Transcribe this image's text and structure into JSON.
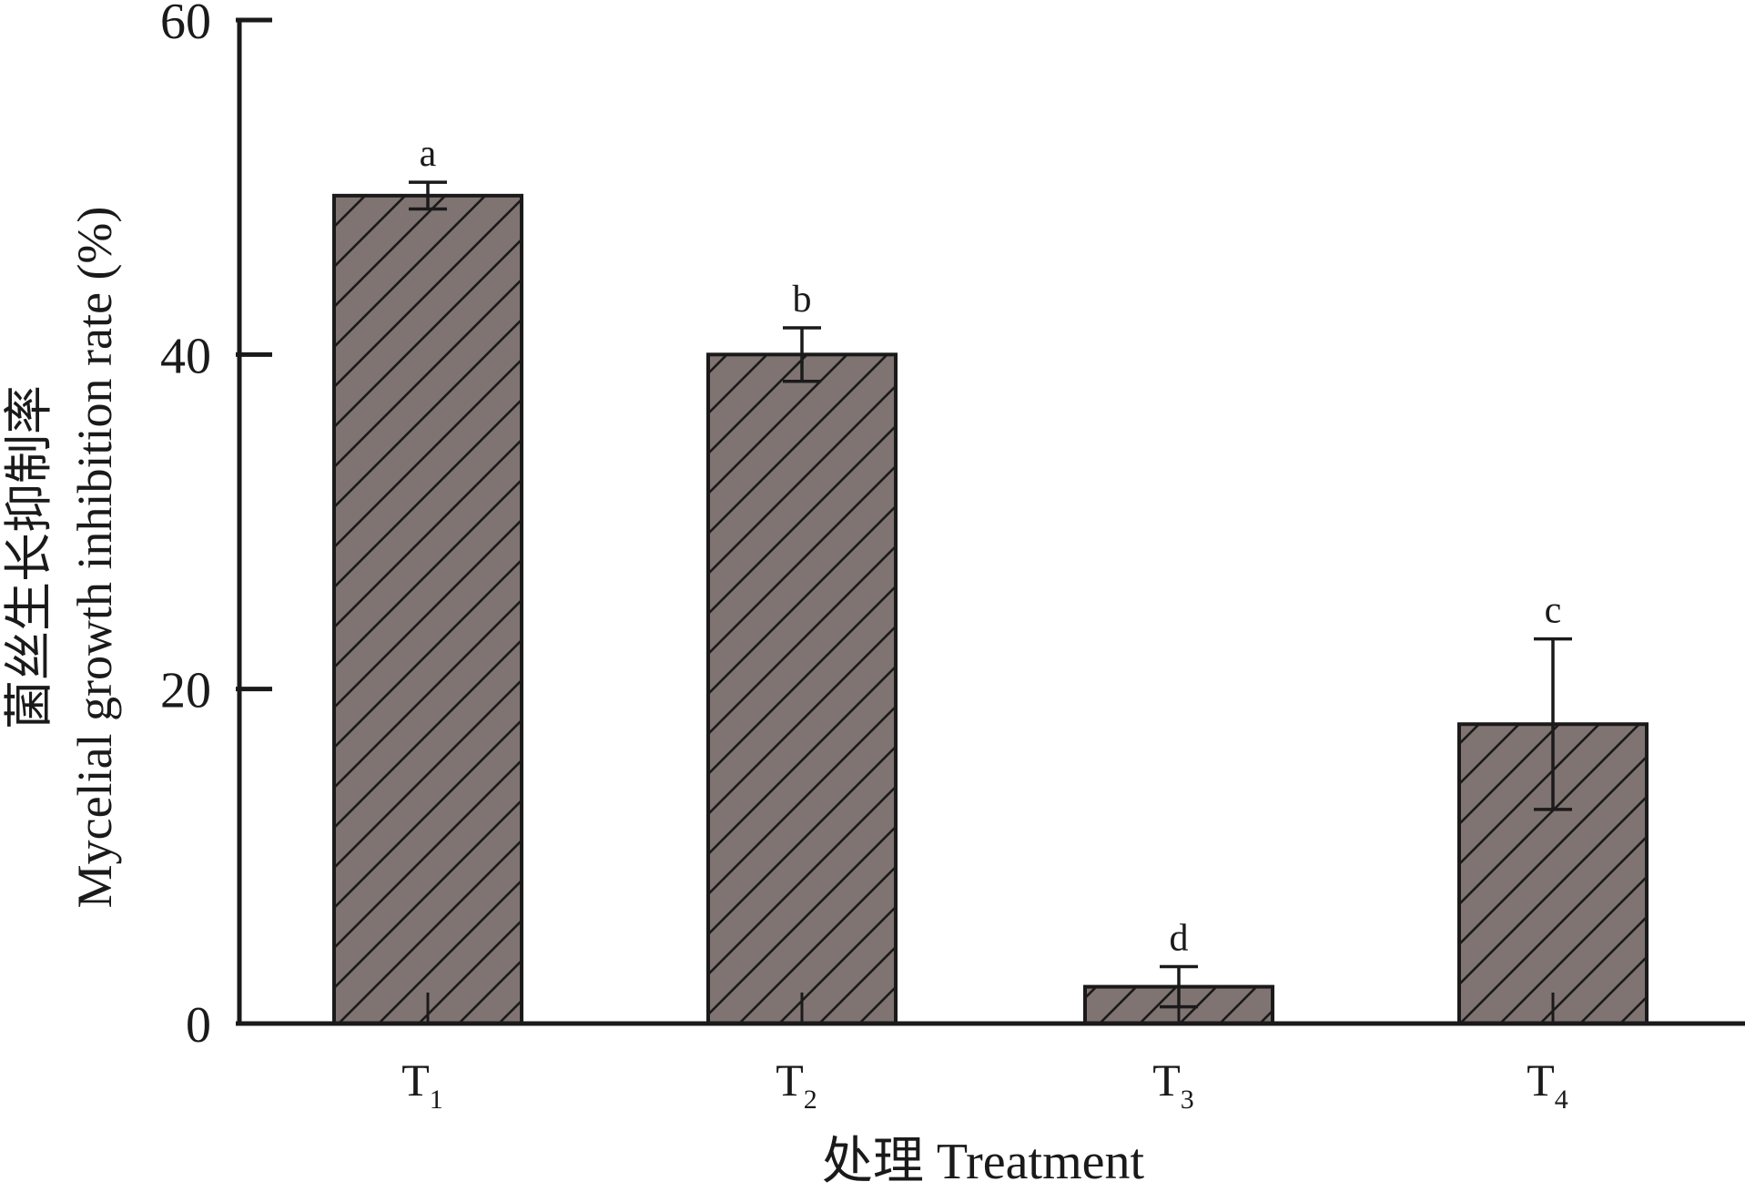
{
  "chart_data": {
    "type": "bar",
    "title": "",
    "xlabel": "处理 Treatment",
    "ylabel_cn": "菌丝生长抑制率",
    "ylabel": "Mycelial growth inhibition rate (%)",
    "ylim": [
      0,
      60
    ],
    "yticks": [
      0,
      20,
      40,
      60
    ],
    "grid": false,
    "legend": "none",
    "categories": [
      {
        "base": "T",
        "sub": "1"
      },
      {
        "base": "T",
        "sub": "2"
      },
      {
        "base": "T",
        "sub": "3"
      },
      {
        "base": "T",
        "sub": "4"
      }
    ],
    "values": [
      49.5,
      40.0,
      2.2,
      17.9
    ],
    "errors": [
      0.8,
      1.6,
      1.2,
      5.1
    ],
    "significance_letters": [
      "a",
      "b",
      "d",
      "c"
    ],
    "colors": {
      "bar_fill": "#807472",
      "bar_stroke": "#1a1a1a",
      "hatch": "#1a1a1a",
      "axis": "#1a1a1a"
    }
  }
}
